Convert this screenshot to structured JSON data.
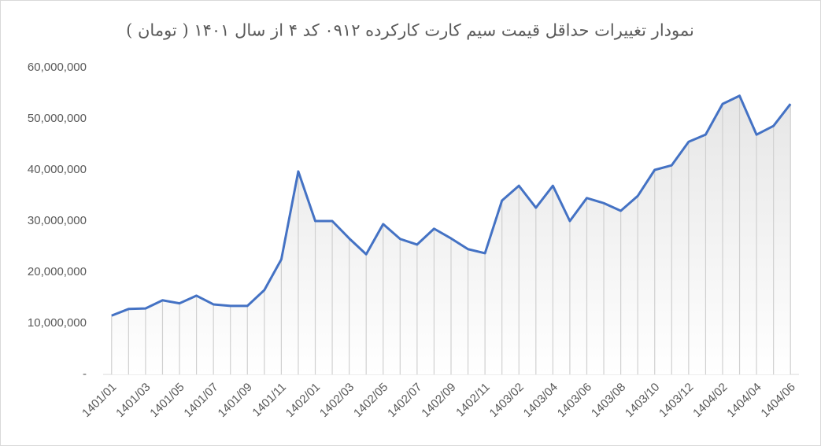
{
  "chart_data": {
    "type": "line",
    "title": "نمودار تغییرات حداقل قیمت سیم کارت کارکرده ۰۹۱۲ کد ۴ از سال ۱۴۰۱ ( تومان )",
    "categories": [
      "1401/01",
      null,
      "1401/03",
      null,
      "1401/05",
      null,
      "1401/07",
      null,
      "1401/09",
      null,
      "1401/11",
      null,
      "1402/01",
      null,
      "1402/03",
      null,
      "1402/05",
      null,
      "1402/07",
      null,
      "1402/09",
      null,
      "1402/11",
      null,
      "1403/02",
      null,
      "1403/04",
      null,
      "1403/06",
      null,
      "1403/08",
      null,
      "1403/10",
      null,
      "1403/12",
      null,
      "1404/02",
      null,
      "1404/04",
      null,
      "1404/06"
    ],
    "values": [
      11500000,
      12800000,
      12900000,
      14500000,
      13900000,
      15400000,
      13700000,
      13400000,
      13400000,
      16500000,
      22500000,
      39700000,
      30000000,
      30000000,
      26600000,
      23500000,
      29400000,
      26500000,
      25400000,
      28500000,
      26600000,
      24500000,
      23700000,
      34000000,
      36900000,
      32600000,
      36900000,
      30000000,
      34500000,
      33500000,
      32000000,
      34900000,
      40000000,
      40900000,
      45500000,
      46900000,
      52900000,
      54500000,
      46900000,
      48600000,
      52900000
    ],
    "color": "#4472c4",
    "fill_area": true,
    "drop_lines": true,
    "ylim": [
      0,
      60000000
    ],
    "yticks": [
      {
        "value": 0,
        "label": "-"
      },
      {
        "value": 10000000,
        "label": "10,000,000"
      },
      {
        "value": 20000000,
        "label": "20,000,000"
      },
      {
        "value": 30000000,
        "label": "30,000,000"
      },
      {
        "value": 40000000,
        "label": "40,000,000"
      },
      {
        "value": 50000000,
        "label": "50,000,000"
      },
      {
        "value": 60000000,
        "label": "60,000,000"
      }
    ]
  }
}
